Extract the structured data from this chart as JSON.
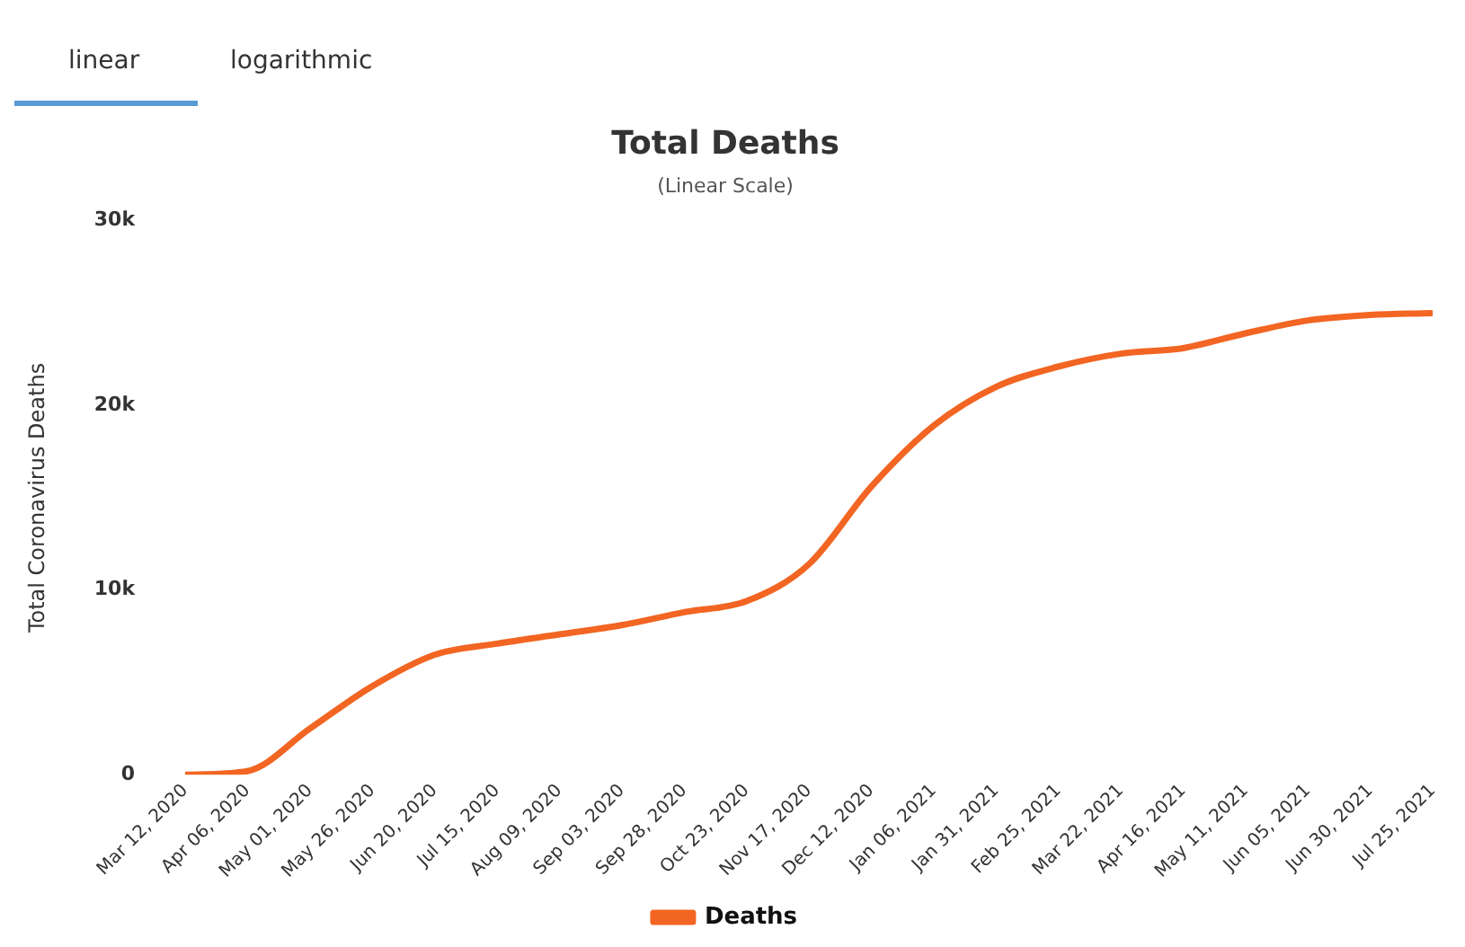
{
  "chart_data": {
    "type": "line",
    "title": "Total Deaths",
    "subtitle": "(Linear Scale)",
    "ylabel": "Total Coronavirus Deaths",
    "annotations": [
      "linear",
      "logarithmic"
    ],
    "categories": [
      "Mar 12, 2020",
      "Apr 06, 2020",
      "May 01, 2020",
      "May 26, 2020",
      "Jun 20, 2020",
      "Jul 15, 2020",
      "Aug 09, 2020",
      "Sep 03, 2020",
      "Sep 28, 2020",
      "Oct 23, 2020",
      "Nov 17, 2020",
      "Dec 12, 2020",
      "Jan 06, 2021",
      "Jan 31, 2021",
      "Feb 25, 2021",
      "Mar 22, 2021",
      "Apr 16, 2021",
      "May 11, 2021",
      "Jun 05, 2021",
      "Jun 30, 2021",
      "Jul 25, 2021"
    ],
    "series": [
      {
        "name": "Deaths",
        "color": "#f26522",
        "values": [
          0,
          200,
          2500,
          4800,
          6500,
          7100,
          7600,
          8100,
          8800,
          9400,
          11400,
          15600,
          18900,
          21000,
          22100,
          22800,
          23100,
          23900,
          24600,
          24900,
          25000
        ]
      }
    ],
    "ylim": [
      0,
      30000
    ],
    "yticks": [
      {
        "value": 0,
        "label": "0"
      },
      {
        "value": 10000,
        "label": "10k"
      },
      {
        "value": 20000,
        "label": "20k"
      },
      {
        "value": 30000,
        "label": "30k"
      }
    ],
    "grid": false,
    "legend": "bottom",
    "line_style": "solid"
  }
}
